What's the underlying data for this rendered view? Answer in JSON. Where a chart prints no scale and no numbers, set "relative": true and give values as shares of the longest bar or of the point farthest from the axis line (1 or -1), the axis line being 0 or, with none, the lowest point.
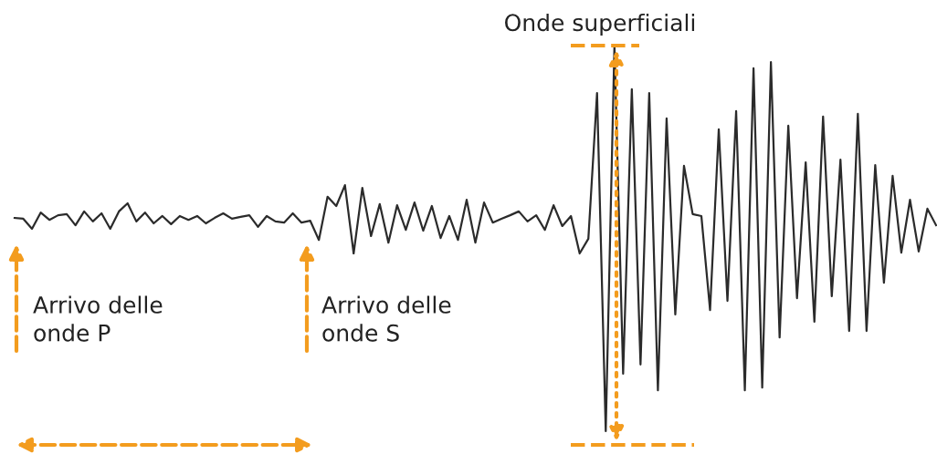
{
  "chart_data": {
    "type": "line",
    "relative": true,
    "categories": [
      null,
      null,
      null,
      null,
      null,
      null,
      null,
      null,
      null,
      null,
      null,
      null,
      null,
      null,
      null,
      null,
      null,
      null,
      null,
      null,
      null,
      null,
      null,
      null,
      null,
      null,
      null,
      null,
      null,
      null,
      null,
      null,
      null,
      null,
      null,
      null,
      null,
      null,
      null,
      null,
      null,
      null,
      null,
      null,
      null,
      null,
      null,
      null,
      null,
      null,
      null,
      null,
      null,
      null,
      null,
      null,
      null,
      null,
      null,
      null,
      null,
      null,
      null,
      null,
      null,
      null,
      null,
      null,
      null,
      null,
      null,
      null,
      null,
      null,
      null,
      null,
      null,
      null,
      null,
      null,
      null,
      null,
      null,
      null,
      null,
      null,
      null,
      null,
      null,
      null,
      null,
      null,
      null,
      null,
      null,
      null,
      null,
      null,
      null,
      null,
      null,
      null,
      null,
      null,
      null,
      null,
      null
    ],
    "series": [
      {
        "color": "#2b2b2b",
        "values": [
          0.553,
          0.551,
          0.525,
          0.567,
          0.548,
          0.56,
          0.563,
          0.534,
          0.57,
          0.544,
          0.565,
          0.525,
          0.57,
          0.591,
          0.544,
          0.567,
          0.539,
          0.558,
          0.537,
          0.558,
          0.548,
          0.558,
          0.539,
          0.553,
          0.565,
          0.551,
          0.556,
          0.56,
          0.53,
          0.558,
          0.544,
          0.541,
          0.565,
          0.541,
          0.546,
          0.496,
          0.608,
          0.584,
          0.638,
          0.461,
          0.631,
          0.506,
          0.589,
          0.489,
          0.586,
          0.522,
          0.593,
          0.52,
          0.584,
          0.501,
          0.558,
          0.496,
          0.6,
          0.489,
          0.593,
          0.541,
          0.551,
          0.56,
          0.57,
          0.544,
          0.56,
          0.522,
          0.586,
          0.532,
          0.558,
          0.461,
          0.499,
          0.877,
          0,
          1,
          0.149,
          0.887,
          0.173,
          0.877,
          0.106,
          0.811,
          0.303,
          0.688,
          0.563,
          0.558,
          0.314,
          0.783,
          0.338,
          0.83,
          0.106,
          0.941,
          0.113,
          0.957,
          0.243,
          0.792,
          0.345,
          0.697,
          0.284,
          0.816,
          0.35,
          0.704,
          0.26,
          0.823,
          0.26,
          0.69,
          0.385,
          0.662,
          0.463,
          0.6,
          0.466,
          0.577,
          0.534
        ]
      }
    ],
    "annotations": [
      "Onde superficiali",
      "Arrivo delle\nonde P",
      "Arrivo delle\nonde S"
    ]
  }
}
